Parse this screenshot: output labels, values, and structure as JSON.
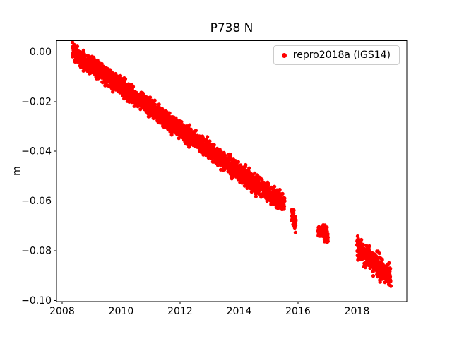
{
  "chart_data": {
    "type": "scatter",
    "title": "P738 N",
    "xlabel": "",
    "ylabel": "m",
    "xlim": [
      2007.81,
      2019.69
    ],
    "ylim": [
      -0.1005,
      0.0045
    ],
    "xticks": [
      2008,
      2010,
      2012,
      2014,
      2016,
      2018
    ],
    "xtick_labels": [
      "2008",
      "2010",
      "2012",
      "2014",
      "2016",
      "2018"
    ],
    "yticks": [
      0,
      -0.02,
      -0.04,
      -0.06,
      -0.08,
      -0.1
    ],
    "ytick_labels": [
      "0.00",
      "−0.02",
      "−0.04",
      "−0.06",
      "−0.08",
      "−0.10"
    ],
    "grid": false,
    "legend": {
      "label": "repro2018a (IGS14)",
      "position": "upper right",
      "marker": "dot",
      "marker_color": "#ff0000",
      "border_color": "#cccccc"
    },
    "series": [
      {
        "name": "repro2018a (IGS14)",
        "color": "#ff0000",
        "marker_radius_px": 2.6,
        "trend_description": "Daily GPS north-component time series: linear trend of about -8.6 mm/yr, from 0.000 m at 2008.4 down to about -0.091 m at 2019.15, with data gaps near 2015.6-2016.7 and 2017.0-2018.0",
        "segments": [
          {
            "x_start": 2008.35,
            "x_end": 2015.55,
            "y_start": 0.0,
            "y_end": -0.0615,
            "noise_sd": 0.0018,
            "n_points": 2200
          },
          {
            "x_start": 2015.78,
            "x_end": 2015.93,
            "y_start": -0.0645,
            "y_end": -0.07,
            "noise_sd": 0.0016,
            "n_points": 45
          },
          {
            "x_start": 2016.68,
            "x_end": 2017.02,
            "y_start": -0.0715,
            "y_end": -0.0748,
            "noise_sd": 0.0015,
            "n_points": 95
          },
          {
            "x_start": 2018.0,
            "x_end": 2019.15,
            "y_start": -0.079,
            "y_end": -0.0908,
            "noise_sd": 0.0022,
            "n_points": 330
          }
        ]
      }
    ]
  }
}
